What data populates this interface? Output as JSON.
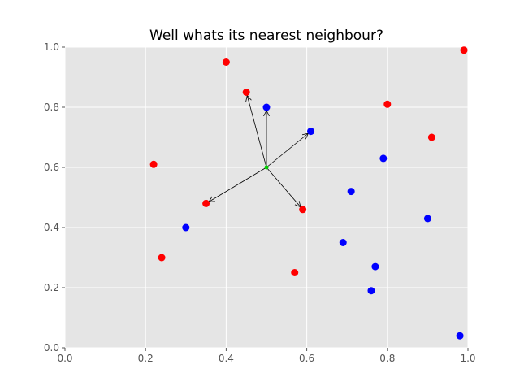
{
  "chart_data": {
    "type": "scatter",
    "title": "Well whats its nearest neighbour?",
    "xlabel": "",
    "ylabel": "",
    "xlim": [
      0,
      1
    ],
    "ylim": [
      0,
      1
    ],
    "x_ticks": [
      "0.0",
      "0.2",
      "0.4",
      "0.6",
      "0.8",
      "1.0"
    ],
    "y_ticks": [
      "0.0",
      "0.2",
      "0.4",
      "0.6",
      "0.8",
      "1.0"
    ],
    "grid": true,
    "style": "ggplot",
    "colors": {
      "background": "#e5e5e5",
      "grid": "#ffffff",
      "red": "#ff0000",
      "blue": "#0000ff",
      "query": "#00cc00",
      "arrow": "#000000"
    },
    "series": [
      {
        "color": "red",
        "points": [
          [
            0.4,
            0.95
          ],
          [
            0.45,
            0.85
          ],
          [
            0.99,
            0.99
          ],
          [
            0.8,
            0.81
          ],
          [
            0.91,
            0.7
          ],
          [
            0.22,
            0.61
          ],
          [
            0.35,
            0.48
          ],
          [
            0.59,
            0.46
          ],
          [
            0.24,
            0.3
          ],
          [
            0.57,
            0.25
          ]
        ]
      },
      {
        "color": "blue",
        "points": [
          [
            0.5,
            0.8
          ],
          [
            0.61,
            0.72
          ],
          [
            0.79,
            0.63
          ],
          [
            0.71,
            0.52
          ],
          [
            0.9,
            0.43
          ],
          [
            0.3,
            0.4
          ],
          [
            0.69,
            0.35
          ],
          [
            0.77,
            0.27
          ],
          [
            0.76,
            0.19
          ],
          [
            0.98,
            0.04
          ]
        ]
      }
    ],
    "query_point": [
      0.5,
      0.6
    ],
    "arrows_to": [
      [
        0.45,
        0.85
      ],
      [
        0.5,
        0.8
      ],
      [
        0.61,
        0.72
      ],
      [
        0.35,
        0.48
      ],
      [
        0.59,
        0.46
      ]
    ]
  }
}
